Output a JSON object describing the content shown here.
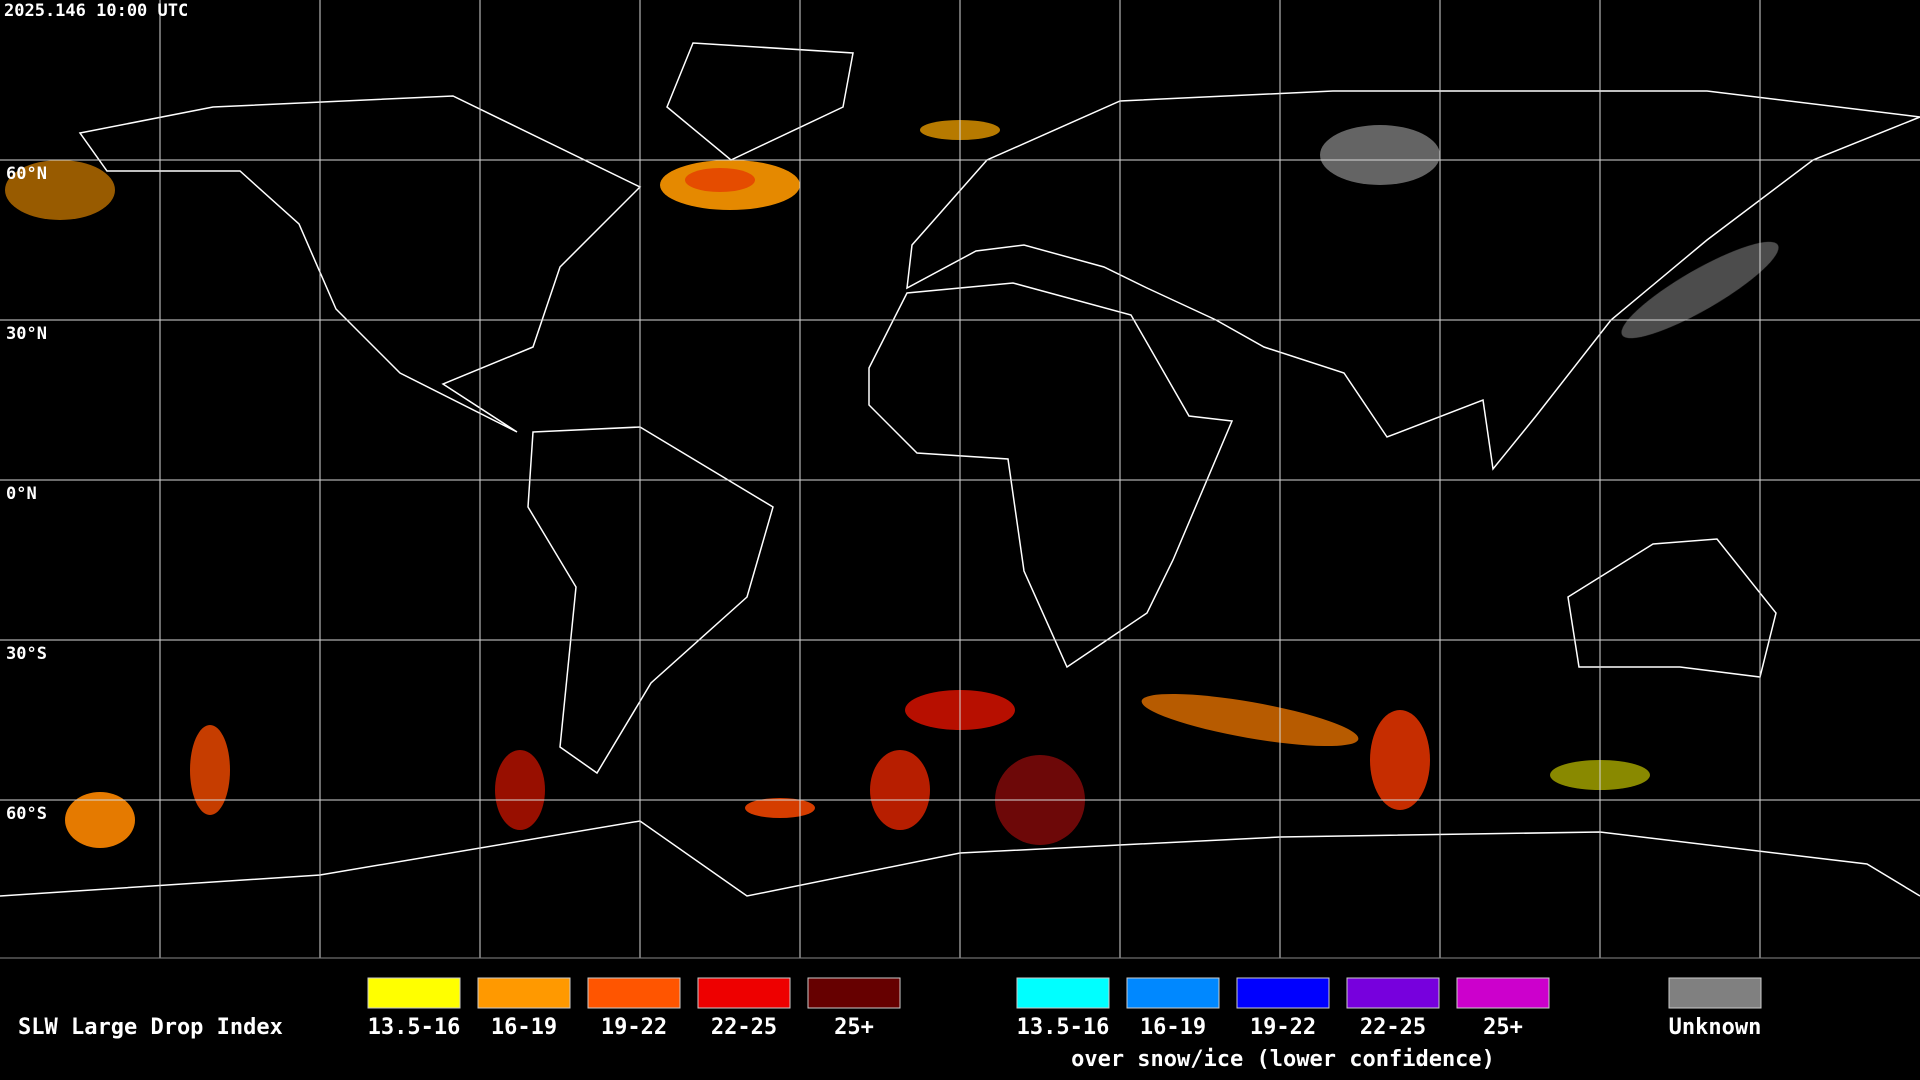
{
  "timestamp": "2025.146 10:00 UTC",
  "grid": {
    "lat_labels": [
      "60°N",
      "30°N",
      "0°N",
      "30°S",
      "60°S"
    ]
  },
  "legend": {
    "title": "SLW Large Drop Index",
    "liquid": [
      {
        "label": "13.5-16",
        "color": "#ffff00"
      },
      {
        "label": "16-19",
        "color": "#ff9900"
      },
      {
        "label": "19-22",
        "color": "#ff5500"
      },
      {
        "label": "22-25",
        "color": "#ee0000"
      },
      {
        "label": "25+",
        "color": "#660000"
      }
    ],
    "snow_ice": [
      {
        "label": "13.5-16",
        "color": "#00ffff"
      },
      {
        "label": "16-19",
        "color": "#0088ff"
      },
      {
        "label": "19-22",
        "color": "#0000ff"
      },
      {
        "label": "22-25",
        "color": "#7700dd"
      },
      {
        "label": "25+",
        "color": "#cc00cc"
      }
    ],
    "snow_ice_caption": "over snow/ice (lower confidence)",
    "unknown": {
      "label": "Unknown",
      "color": "#808080"
    }
  }
}
